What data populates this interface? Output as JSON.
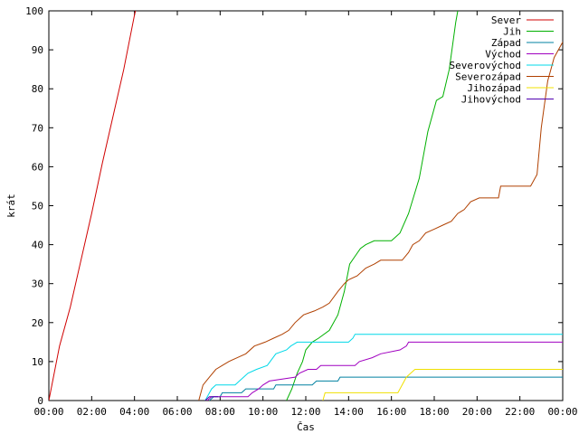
{
  "chart_data": {
    "type": "line",
    "title": "",
    "xlabel": "Čas",
    "ylabel": "krát",
    "xlim": [
      0,
      24
    ],
    "ylim": [
      0,
      100
    ],
    "x_ticks": [
      {
        "value": 0,
        "label": "00:00"
      },
      {
        "value": 2,
        "label": "02:00"
      },
      {
        "value": 4,
        "label": "04:00"
      },
      {
        "value": 6,
        "label": "06:00"
      },
      {
        "value": 8,
        "label": "08:00"
      },
      {
        "value": 10,
        "label": "10:00"
      },
      {
        "value": 12,
        "label": "12:00"
      },
      {
        "value": 14,
        "label": "14:00"
      },
      {
        "value": 16,
        "label": "16:00"
      },
      {
        "value": 18,
        "label": "18:00"
      },
      {
        "value": 20,
        "label": "20:00"
      },
      {
        "value": 22,
        "label": "22:00"
      },
      {
        "value": 24,
        "label": "00:00"
      }
    ],
    "y_ticks": [
      {
        "value": 0,
        "label": "0"
      },
      {
        "value": 10,
        "label": "10"
      },
      {
        "value": 20,
        "label": "20"
      },
      {
        "value": 30,
        "label": "30"
      },
      {
        "value": 40,
        "label": "40"
      },
      {
        "value": 50,
        "label": "50"
      },
      {
        "value": 60,
        "label": "60"
      },
      {
        "value": 70,
        "label": "70"
      },
      {
        "value": 80,
        "label": "80"
      },
      {
        "value": 90,
        "label": "90"
      },
      {
        "value": 100,
        "label": "100"
      }
    ],
    "grid": false,
    "legend_position": "top-right",
    "series": [
      {
        "name": "Sever",
        "color": "#d00000",
        "points": [
          [
            0,
            0
          ],
          [
            0.5,
            14
          ],
          [
            1,
            24
          ],
          [
            1.5,
            36
          ],
          [
            2,
            48
          ],
          [
            2.5,
            61
          ],
          [
            3,
            73
          ],
          [
            3.5,
            85
          ],
          [
            4,
            99
          ],
          [
            4.05,
            100
          ]
        ]
      },
      {
        "name": "Jih",
        "color": "#00b000",
        "points": [
          [
            11.1,
            0
          ],
          [
            11.35,
            3
          ],
          [
            11.6,
            7
          ],
          [
            11.85,
            10
          ],
          [
            12,
            13
          ],
          [
            12.3,
            15
          ],
          [
            12.6,
            16
          ],
          [
            13.1,
            18
          ],
          [
            13.5,
            22
          ],
          [
            13.8,
            28
          ],
          [
            14.05,
            35
          ],
          [
            14.3,
            37
          ],
          [
            14.55,
            39
          ],
          [
            14.8,
            40
          ],
          [
            15.2,
            41
          ],
          [
            16,
            41
          ],
          [
            16.4,
            43
          ],
          [
            16.8,
            48
          ],
          [
            17.3,
            57
          ],
          [
            17.7,
            69
          ],
          [
            18.1,
            77
          ],
          [
            18.4,
            78
          ],
          [
            18.7,
            85
          ],
          [
            19,
            97
          ],
          [
            19.1,
            100
          ]
        ]
      },
      {
        "name": "Západ",
        "color": "#0080a0",
        "points": [
          [
            7.5,
            0
          ],
          [
            7.7,
            1
          ],
          [
            8,
            1
          ],
          [
            8.1,
            2
          ],
          [
            9,
            2
          ],
          [
            9.2,
            3
          ],
          [
            10.5,
            3
          ],
          [
            10.6,
            4
          ],
          [
            12.3,
            4
          ],
          [
            12.5,
            5
          ],
          [
            13.5,
            5
          ],
          [
            13.6,
            6
          ],
          [
            24,
            6
          ]
        ]
      },
      {
        "name": "Východ",
        "color": "#a000c0",
        "points": [
          [
            7.4,
            0
          ],
          [
            7.6,
            1
          ],
          [
            9.3,
            1
          ],
          [
            9.5,
            2
          ],
          [
            9.8,
            3
          ],
          [
            10,
            4
          ],
          [
            10.3,
            5
          ],
          [
            11.5,
            6
          ],
          [
            11.7,
            7
          ],
          [
            12.1,
            8
          ],
          [
            12.5,
            8
          ],
          [
            12.7,
            9
          ],
          [
            14.3,
            9
          ],
          [
            14.5,
            10
          ],
          [
            15.1,
            11
          ],
          [
            15.5,
            12
          ],
          [
            16.4,
            13
          ],
          [
            16.7,
            14
          ],
          [
            16.8,
            15
          ],
          [
            24,
            15
          ]
        ]
      },
      {
        "name": "Severovýchod",
        "color": "#00d8e8",
        "points": [
          [
            7.3,
            0
          ],
          [
            7.6,
            3
          ],
          [
            7.8,
            4
          ],
          [
            8.7,
            4
          ],
          [
            8.9,
            5
          ],
          [
            9.3,
            7
          ],
          [
            9.7,
            8
          ],
          [
            10.2,
            9
          ],
          [
            10.6,
            12
          ],
          [
            11.1,
            13
          ],
          [
            11.3,
            14
          ],
          [
            11.6,
            15
          ],
          [
            14,
            15
          ],
          [
            14.2,
            16
          ],
          [
            14.3,
            17
          ],
          [
            24,
            17
          ]
        ]
      },
      {
        "name": "Severozápad",
        "color": "#b04000",
        "points": [
          [
            7.0,
            0
          ],
          [
            7.2,
            4
          ],
          [
            7.5,
            6
          ],
          [
            7.8,
            8
          ],
          [
            8.1,
            9
          ],
          [
            8.4,
            10
          ],
          [
            8.8,
            11
          ],
          [
            9.2,
            12
          ],
          [
            9.6,
            14
          ],
          [
            10.1,
            15
          ],
          [
            10.5,
            16
          ],
          [
            10.9,
            17
          ],
          [
            11.2,
            18
          ],
          [
            11.5,
            20
          ],
          [
            11.9,
            22
          ],
          [
            12.4,
            23
          ],
          [
            12.8,
            24
          ],
          [
            13.1,
            25
          ],
          [
            13.5,
            28
          ],
          [
            13.8,
            30
          ],
          [
            14,
            31
          ],
          [
            14.4,
            32
          ],
          [
            14.8,
            34
          ],
          [
            15.2,
            35
          ],
          [
            15.5,
            36
          ],
          [
            16.5,
            36
          ],
          [
            16.8,
            38
          ],
          [
            17.0,
            40
          ],
          [
            17.3,
            41
          ],
          [
            17.6,
            43
          ],
          [
            18,
            44
          ],
          [
            18.4,
            45
          ],
          [
            18.8,
            46
          ],
          [
            19.1,
            48
          ],
          [
            19.4,
            49
          ],
          [
            19.7,
            51
          ],
          [
            20.1,
            52
          ],
          [
            21,
            52
          ],
          [
            21.1,
            55
          ],
          [
            22.5,
            55
          ],
          [
            22.8,
            58
          ],
          [
            23,
            70
          ],
          [
            23.3,
            82
          ],
          [
            23.6,
            88
          ],
          [
            24,
            92
          ]
        ]
      },
      {
        "name": "Jihozápad",
        "color": "#f0e000",
        "points": [
          [
            12.8,
            0
          ],
          [
            12.9,
            2
          ],
          [
            16.3,
            2
          ],
          [
            16.5,
            4
          ],
          [
            16.7,
            6
          ],
          [
            16.9,
            7
          ],
          [
            17.1,
            8
          ],
          [
            24,
            8
          ]
        ]
      },
      {
        "name": "Jihovýchod",
        "color": "#5000b0",
        "points": [
          [
            7.3,
            0
          ],
          [
            7.5,
            1
          ],
          [
            7.9,
            1
          ]
        ]
      }
    ]
  }
}
